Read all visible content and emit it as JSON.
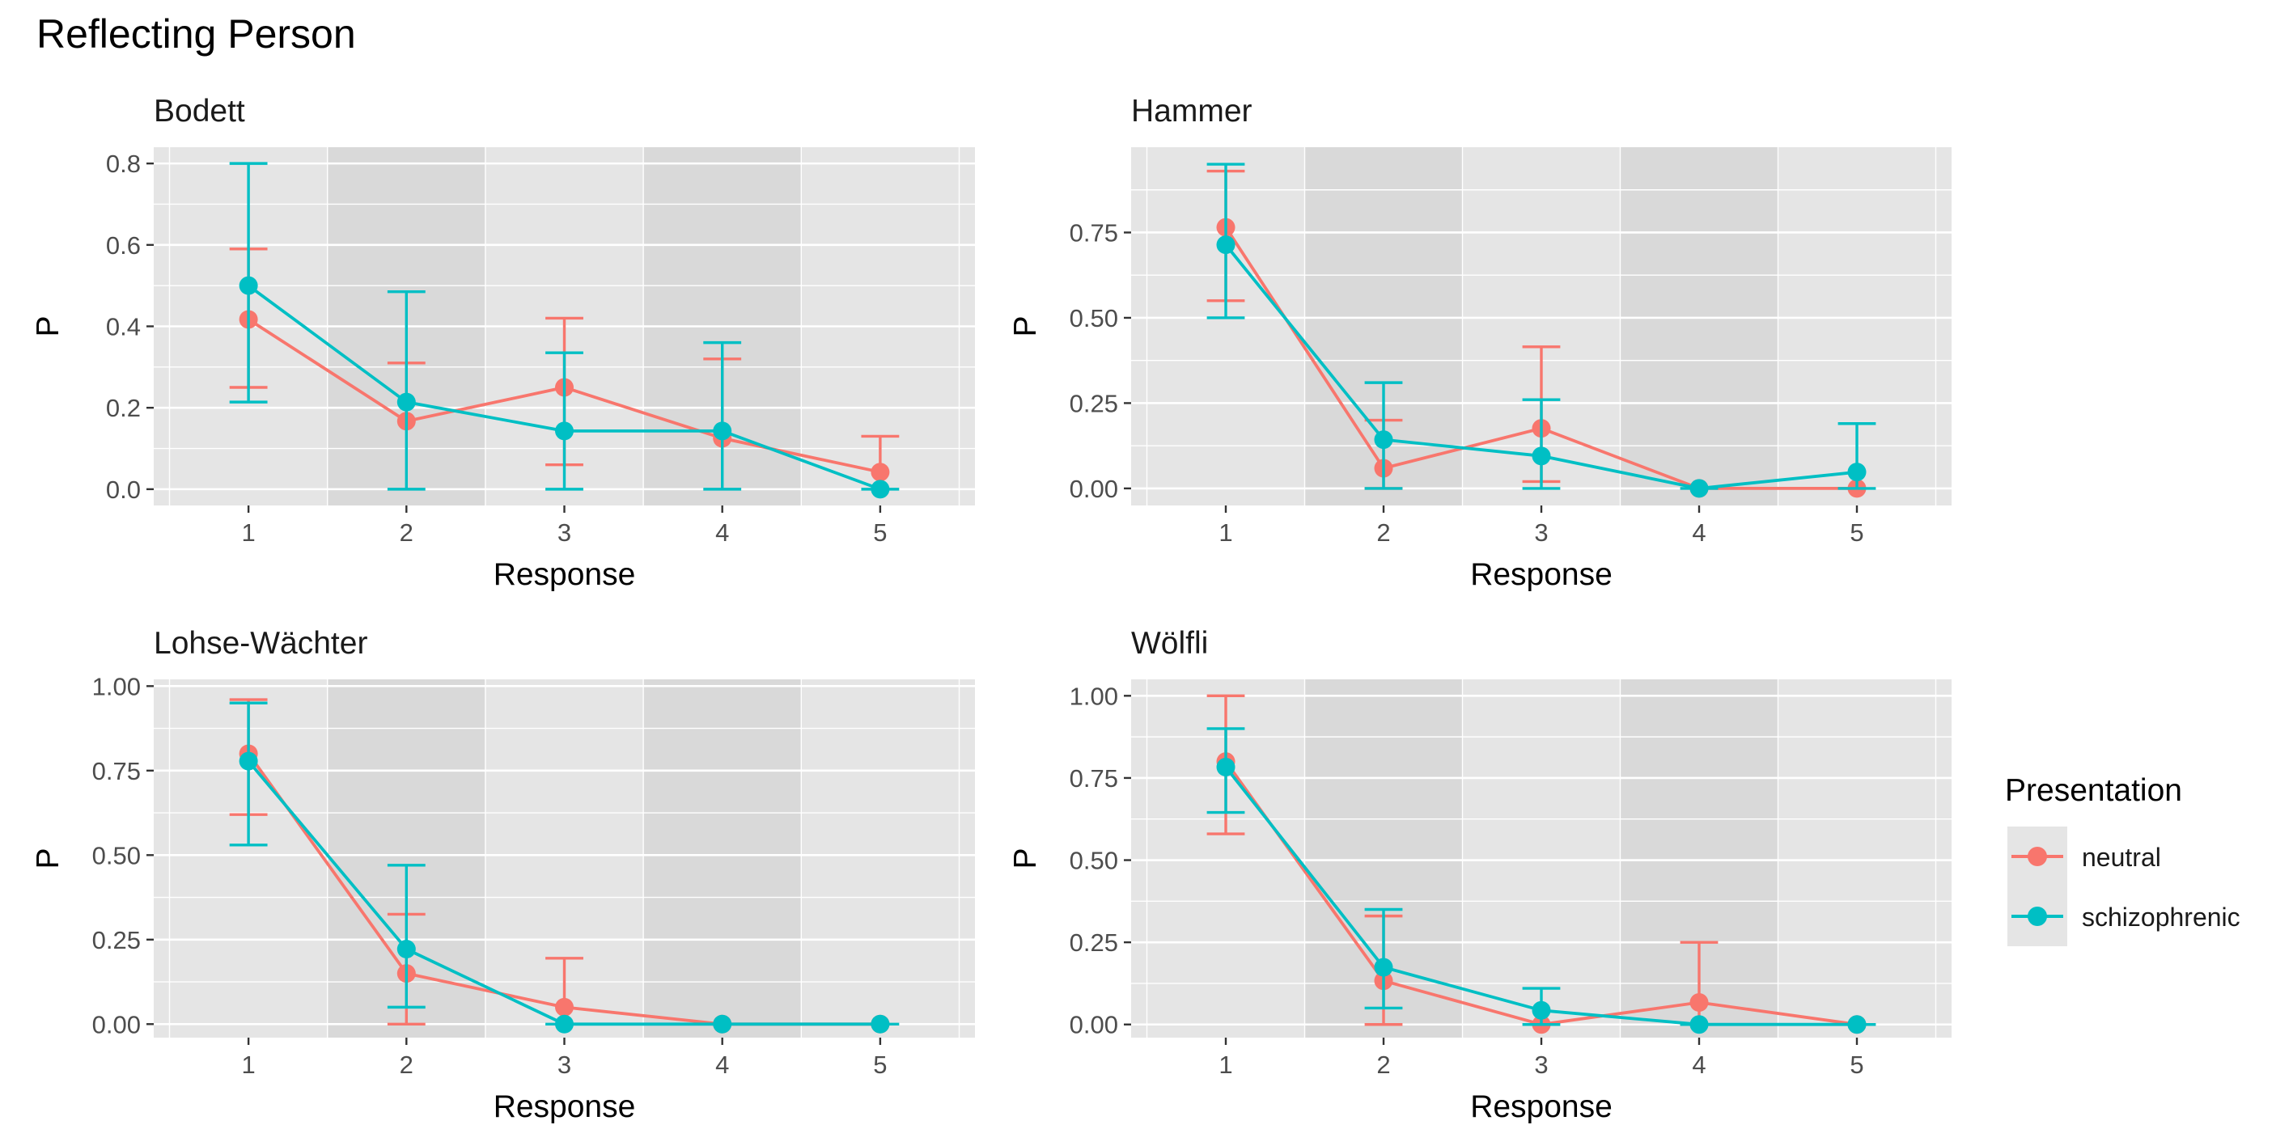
{
  "title": "Reflecting Person",
  "legend": {
    "title": "Presentation",
    "position": "right",
    "items": [
      {
        "label": "neutral",
        "color": "#F8766D"
      },
      {
        "label": "schizophrenic",
        "color": "#00BFC4"
      }
    ]
  },
  "colors": {
    "neutral": "#F8766D",
    "schizophrenic": "#00BFC4",
    "panel_light": "#E5E5E5",
    "panel_dark": "#D9D9D9",
    "grid": "#FFFFFF"
  },
  "chart_data": [
    {
      "type": "line",
      "panel": "Bodett",
      "xlabel": "Response",
      "ylabel": "P",
      "categories": [
        1,
        2,
        3,
        4,
        5
      ],
      "ylim": [
        -0.04,
        0.84
      ],
      "yticks": [
        0.0,
        0.2,
        0.4,
        0.6,
        0.8
      ],
      "ytick_labels": [
        "0.0",
        "0.2",
        "0.4",
        "0.6",
        "0.8"
      ],
      "series": [
        {
          "name": "neutral",
          "values": [
            0.417,
            0.167,
            0.25,
            0.125,
            0.042
          ],
          "lower": [
            0.25,
            null,
            0.06,
            null,
            null
          ],
          "upper": [
            0.59,
            0.31,
            0.42,
            0.32,
            0.13
          ]
        },
        {
          "name": "schizophrenic",
          "values": [
            0.5,
            0.214,
            0.143,
            0.143,
            0.0
          ],
          "lower": [
            0.214,
            0.0,
            0.0,
            0.0,
            0.0
          ],
          "upper": [
            0.8,
            0.485,
            0.335,
            0.36,
            null
          ]
        }
      ]
    },
    {
      "type": "line",
      "panel": "Hammer",
      "xlabel": "Response",
      "ylabel": "P",
      "categories": [
        1,
        2,
        3,
        4,
        5
      ],
      "ylim": [
        -0.05,
        1.0
      ],
      "yticks": [
        0.0,
        0.25,
        0.5,
        0.75
      ],
      "ytick_labels": [
        "0.00",
        "0.25",
        "0.50",
        "0.75"
      ],
      "series": [
        {
          "name": "neutral",
          "values": [
            0.765,
            0.059,
            0.176,
            0.0,
            0.0
          ],
          "lower": [
            0.55,
            0.0,
            0.02,
            null,
            null
          ],
          "upper": [
            0.93,
            0.2,
            0.415,
            null,
            null
          ]
        },
        {
          "name": "schizophrenic",
          "values": [
            0.714,
            0.143,
            0.095,
            0.0,
            0.048
          ],
          "lower": [
            0.5,
            0.0,
            0.0,
            0.0,
            0.0
          ],
          "upper": [
            0.95,
            0.31,
            0.26,
            null,
            0.19
          ]
        }
      ]
    },
    {
      "type": "line",
      "panel": "Lohse-Wächter",
      "xlabel": "Response",
      "ylabel": "P",
      "categories": [
        1,
        2,
        3,
        4,
        5
      ],
      "ylim": [
        -0.04,
        1.02
      ],
      "yticks": [
        0.0,
        0.25,
        0.5,
        0.75,
        1.0
      ],
      "ytick_labels": [
        "0.00",
        "0.25",
        "0.50",
        "0.75",
        "1.00"
      ],
      "series": [
        {
          "name": "neutral",
          "values": [
            0.8,
            0.15,
            0.05,
            0.0,
            0.0
          ],
          "lower": [
            0.62,
            0.0,
            null,
            null,
            null
          ],
          "upper": [
            0.96,
            0.325,
            0.195,
            null,
            null
          ]
        },
        {
          "name": "schizophrenic",
          "values": [
            0.778,
            0.222,
            0.0,
            0.0,
            0.0
          ],
          "lower": [
            0.53,
            0.05,
            0.0,
            0.0,
            0.0
          ],
          "upper": [
            0.95,
            0.47,
            null,
            null,
            null
          ]
        }
      ]
    },
    {
      "type": "line",
      "panel": "Wölfli",
      "xlabel": "Response",
      "ylabel": "P",
      "categories": [
        1,
        2,
        3,
        4,
        5
      ],
      "ylim": [
        -0.04,
        1.05
      ],
      "yticks": [
        0.0,
        0.25,
        0.5,
        0.75,
        1.0
      ],
      "ytick_labels": [
        "0.00",
        "0.25",
        "0.50",
        "0.75",
        "1.00"
      ],
      "series": [
        {
          "name": "neutral",
          "values": [
            0.8,
            0.133,
            0.0,
            0.067,
            0.0
          ],
          "lower": [
            0.58,
            0.0,
            null,
            0.0,
            null
          ],
          "upper": [
            1.0,
            0.33,
            null,
            0.25,
            null
          ]
        },
        {
          "name": "schizophrenic",
          "values": [
            0.783,
            0.174,
            0.043,
            0.0,
            0.0
          ],
          "lower": [
            0.645,
            0.05,
            0.0,
            0.0,
            0.0
          ],
          "upper": [
            0.9,
            0.35,
            0.11,
            null,
            null
          ]
        }
      ]
    }
  ]
}
